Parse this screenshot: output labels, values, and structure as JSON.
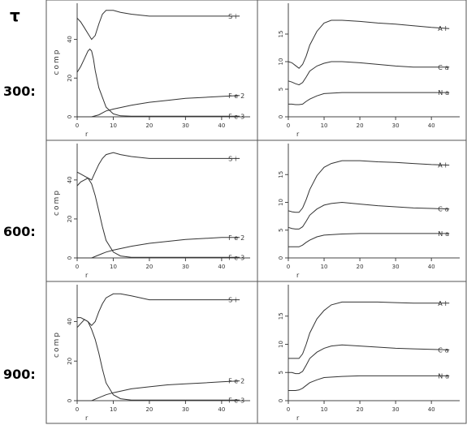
{
  "figure": {
    "tau_label": "τ",
    "rows": [
      {
        "label": "300:"
      },
      {
        "label": "600:"
      },
      {
        "label": "900:"
      }
    ]
  },
  "chart_data": [
    {
      "type": "line",
      "title": "",
      "xlabel": "r",
      "ylabel": "comp",
      "xlim": [
        0,
        47
      ],
      "ylim": [
        0,
        57
      ],
      "xticks": [
        0,
        10,
        20,
        30,
        40
      ],
      "yticks": [
        0,
        20,
        40
      ],
      "series": [
        {
          "name": "Si",
          "x": [
            0,
            1,
            2,
            3,
            4,
            5,
            6,
            7,
            8,
            10,
            12,
            15,
            20,
            25,
            30,
            35,
            40,
            45
          ],
          "y": [
            51,
            49,
            46,
            43,
            40,
            42,
            48,
            53,
            55,
            55,
            54,
            53,
            52,
            52,
            52,
            52,
            52,
            52
          ]
        },
        {
          "name": "Fe2",
          "x": [
            0,
            2,
            3,
            4,
            6,
            8,
            10,
            15,
            20,
            25,
            30,
            35,
            40,
            45
          ],
          "y": [
            0,
            0,
            0,
            0,
            1,
            3,
            4,
            6,
            7.5,
            8.5,
            9.5,
            10,
            10.5,
            11
          ]
        },
        {
          "name": "Fe3",
          "x": [
            0,
            1,
            2,
            3,
            3.5,
            4,
            4.5,
            5,
            6,
            8,
            10,
            12,
            15,
            20,
            30,
            40,
            45
          ],
          "y": [
            23,
            26,
            30,
            34,
            35,
            34,
            30,
            24,
            15,
            5,
            1.5,
            0.5,
            0.3,
            0.3,
            0.3,
            0.3,
            0.3
          ]
        }
      ]
    },
    {
      "type": "line",
      "title": "",
      "xlabel": "r",
      "ylabel": "",
      "xlim": [
        0,
        47
      ],
      "ylim": [
        0,
        20
      ],
      "xticks": [
        0,
        10,
        20,
        30,
        40
      ],
      "yticks": [
        0,
        5,
        10,
        15
      ],
      "series": [
        {
          "name": "Al",
          "x": [
            0,
            1,
            2,
            3,
            4,
            5,
            6,
            8,
            10,
            12,
            15,
            20,
            25,
            30,
            35,
            40,
            45
          ],
          "y": [
            10,
            9.8,
            9.3,
            8.8,
            9.5,
            11,
            13,
            15.5,
            17,
            17.5,
            17.5,
            17.3,
            17,
            16.8,
            16.5,
            16.2,
            16
          ]
        },
        {
          "name": "Ca",
          "x": [
            0,
            1,
            2,
            3,
            4,
            5,
            6,
            8,
            10,
            12,
            15,
            20,
            25,
            30,
            35,
            40,
            45
          ],
          "y": [
            6.5,
            6.3,
            6.0,
            5.8,
            6.2,
            7.2,
            8.3,
            9.2,
            9.7,
            10,
            10,
            9.8,
            9.5,
            9.2,
            9,
            9,
            9
          ]
        },
        {
          "name": "Na",
          "x": [
            0,
            1,
            2,
            3,
            4,
            5,
            6,
            8,
            10,
            15,
            20,
            30,
            40,
            45
          ],
          "y": [
            2.3,
            2.3,
            2.2,
            2.2,
            2.3,
            2.8,
            3.2,
            3.8,
            4.2,
            4.4,
            4.4,
            4.4,
            4.4,
            4.4
          ]
        }
      ]
    },
    {
      "type": "line",
      "title": "",
      "xlabel": "r",
      "ylabel": "comp",
      "xlim": [
        0,
        47
      ],
      "ylim": [
        0,
        57
      ],
      "xticks": [
        0,
        10,
        20,
        30,
        40
      ],
      "yticks": [
        0,
        20,
        40
      ],
      "series": [
        {
          "name": "Si",
          "x": [
            0,
            1,
            2,
            3,
            4,
            5,
            6,
            7,
            8,
            10,
            12,
            15,
            20,
            25,
            30,
            35,
            40,
            45
          ],
          "y": [
            37,
            39,
            40,
            41,
            40,
            44,
            48,
            51,
            53,
            54,
            53,
            52,
            51,
            51,
            51,
            51,
            51,
            51
          ]
        },
        {
          "name": "Fe2",
          "x": [
            0,
            2,
            3,
            4,
            6,
            8,
            10,
            15,
            20,
            25,
            30,
            35,
            40,
            45
          ],
          "y": [
            0,
            0,
            0,
            0,
            1.5,
            3,
            4,
            6,
            7.5,
            8.5,
            9.5,
            10,
            10.5,
            10.5
          ]
        },
        {
          "name": "Fe3",
          "x": [
            0,
            1,
            2,
            3,
            4,
            5,
            6,
            7,
            8,
            10,
            12,
            15,
            20,
            30,
            40,
            45
          ],
          "y": [
            44,
            43,
            42,
            41,
            38,
            32,
            24,
            16,
            9,
            3,
            1,
            0.3,
            0.3,
            0.3,
            0.3,
            0.3
          ]
        }
      ]
    },
    {
      "type": "line",
      "title": "",
      "xlabel": "r",
      "ylabel": "",
      "xlim": [
        0,
        47
      ],
      "ylim": [
        0,
        20
      ],
      "xticks": [
        0,
        10,
        20,
        30,
        40
      ],
      "yticks": [
        0,
        5,
        10,
        15
      ],
      "series": [
        {
          "name": "Al",
          "x": [
            0,
            1,
            2,
            3,
            4,
            5,
            6,
            8,
            10,
            12,
            15,
            20,
            25,
            30,
            35,
            40,
            45
          ],
          "y": [
            8.5,
            8.3,
            8.2,
            8.2,
            9.0,
            10.5,
            12.3,
            14.8,
            16.3,
            17,
            17.5,
            17.5,
            17.3,
            17.2,
            17,
            16.8,
            16.7
          ]
        },
        {
          "name": "Ca",
          "x": [
            0,
            1,
            2,
            3,
            4,
            5,
            6,
            8,
            10,
            12,
            15,
            20,
            25,
            30,
            35,
            40,
            45
          ],
          "y": [
            5.5,
            5.3,
            5.2,
            5.2,
            5.6,
            6.6,
            7.7,
            8.8,
            9.5,
            9.8,
            10,
            9.7,
            9.4,
            9.2,
            9,
            8.9,
            8.8
          ]
        },
        {
          "name": "Na",
          "x": [
            0,
            1,
            2,
            3,
            4,
            5,
            6,
            8,
            10,
            15,
            20,
            30,
            40,
            45
          ],
          "y": [
            2.0,
            2.0,
            2.0,
            2.0,
            2.3,
            2.8,
            3.2,
            3.8,
            4.1,
            4.3,
            4.4,
            4.4,
            4.4,
            4.4
          ]
        }
      ]
    },
    {
      "type": "line",
      "title": "",
      "xlabel": "r",
      "ylabel": "comp",
      "xlim": [
        0,
        47
      ],
      "ylim": [
        0,
        57
      ],
      "xticks": [
        0,
        10,
        20,
        30,
        40
      ],
      "yticks": [
        0,
        20,
        40
      ],
      "series": [
        {
          "name": "Si",
          "x": [
            0,
            1,
            2,
            3,
            4,
            5,
            6,
            7,
            8,
            10,
            12,
            15,
            20,
            25,
            30,
            35,
            40,
            45
          ],
          "y": [
            37,
            39,
            41,
            40,
            38,
            40,
            45,
            49,
            52,
            54,
            54,
            53,
            51,
            51,
            51,
            51,
            51,
            51
          ]
        },
        {
          "name": "Fe2",
          "x": [
            0,
            2,
            3,
            4,
            6,
            8,
            10,
            15,
            20,
            25,
            30,
            35,
            40,
            45
          ],
          "y": [
            0,
            0,
            0,
            0,
            1.5,
            3,
            4,
            6,
            7,
            8,
            8.5,
            9,
            9.5,
            10
          ]
        },
        {
          "name": "Fe3",
          "x": [
            0,
            1,
            2,
            3,
            4,
            5,
            6,
            7,
            8,
            10,
            12,
            15,
            20,
            30,
            40,
            45
          ],
          "y": [
            42,
            42,
            41,
            40,
            36,
            31,
            24,
            16,
            9,
            3,
            1,
            0.3,
            0.3,
            0.3,
            0.3,
            0.3
          ]
        }
      ]
    },
    {
      "type": "line",
      "title": "",
      "xlabel": "r",
      "ylabel": "",
      "xlim": [
        0,
        47
      ],
      "ylim": [
        0,
        20
      ],
      "xticks": [
        0,
        10,
        20,
        30,
        40
      ],
      "yticks": [
        0,
        5,
        10,
        15
      ],
      "series": [
        {
          "name": "Al",
          "x": [
            0,
            1,
            2,
            3,
            4,
            5,
            6,
            8,
            10,
            12,
            15,
            20,
            25,
            30,
            35,
            40,
            45
          ],
          "y": [
            7.5,
            7.5,
            7.5,
            7.5,
            8.3,
            10,
            12,
            14.5,
            16,
            17,
            17.5,
            17.5,
            17.5,
            17.4,
            17.3,
            17.3,
            17.3
          ]
        },
        {
          "name": "Ca",
          "x": [
            0,
            1,
            2,
            3,
            4,
            5,
            6,
            8,
            10,
            12,
            15,
            20,
            25,
            30,
            35,
            40,
            45
          ],
          "y": [
            5.0,
            5.0,
            4.8,
            4.8,
            5.2,
            6.3,
            7.5,
            8.6,
            9.3,
            9.7,
            9.9,
            9.7,
            9.5,
            9.3,
            9.2,
            9.1,
            9
          ]
        },
        {
          "name": "Na",
          "x": [
            0,
            1,
            2,
            3,
            4,
            5,
            6,
            8,
            10,
            15,
            20,
            30,
            40,
            45
          ],
          "y": [
            1.8,
            1.8,
            1.8,
            1.9,
            2.2,
            2.7,
            3.2,
            3.7,
            4.1,
            4.3,
            4.4,
            4.4,
            4.4,
            4.4
          ]
        }
      ]
    }
  ]
}
